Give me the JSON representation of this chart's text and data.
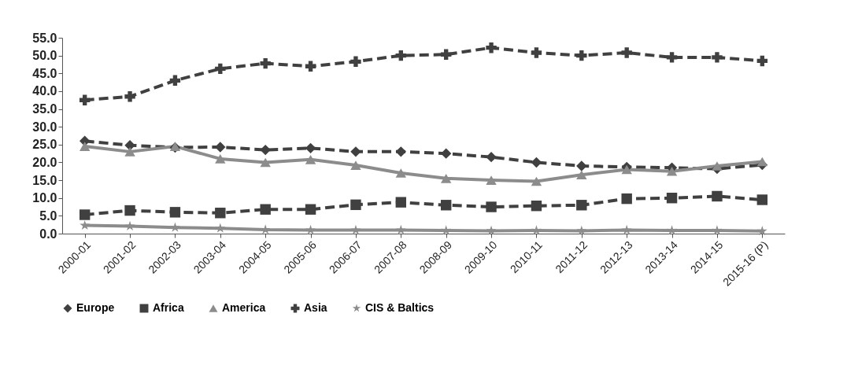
{
  "chart_data": {
    "type": "line",
    "categories": [
      "2000-01",
      "2001-02",
      "2002-03",
      "2003-04",
      "2004-05",
      "2005-06",
      "2006-07",
      "2007-08",
      "2008-09",
      "2009-10",
      "2010-11",
      "2011-12",
      "2012-13",
      "2013-14",
      "2014-15",
      "2015-16 (P)"
    ],
    "series": [
      {
        "name": "Europe",
        "color": "#404040",
        "marker": "diamond",
        "line_style": "dashed",
        "values": [
          26,
          24.8,
          24.2,
          24.3,
          23.5,
          24,
          23,
          23,
          22.5,
          21.5,
          20,
          19,
          18.7,
          18.5,
          18.2,
          19.3
        ]
      },
      {
        "name": "Africa",
        "color": "#404040",
        "marker": "square",
        "line_style": "dashed",
        "values": [
          5.3,
          6.5,
          6,
          5.8,
          6.8,
          6.8,
          8.1,
          8.8,
          8,
          7.5,
          7.8,
          8,
          9.8,
          10,
          10.5,
          9.5
        ]
      },
      {
        "name": "America",
        "color": "#8c8c8c",
        "marker": "triangle",
        "line_style": "solid",
        "values": [
          24.5,
          23,
          24.5,
          21,
          20,
          20.8,
          19.2,
          17,
          15.5,
          15,
          14.7,
          16.5,
          18,
          17.5,
          19,
          20.2
        ]
      },
      {
        "name": "Asia",
        "color": "#404040",
        "marker": "cross",
        "line_style": "dashed",
        "values": [
          37.5,
          38.5,
          43,
          46.3,
          47.8,
          47,
          48.3,
          50,
          50.3,
          52.2,
          50.8,
          50,
          50.8,
          49.5,
          49.5,
          48.5
        ]
      },
      {
        "name": "CIS & Baltics",
        "color": "#8c8c8c",
        "marker": "star",
        "line_style": "solid",
        "values": [
          2.3,
          2.1,
          1.7,
          1.5,
          1.1,
          1,
          1,
          1,
          0.9,
          0.8,
          0.9,
          0.8,
          1,
          0.9,
          0.9,
          0.7
        ]
      }
    ],
    "ylim": [
      0,
      55
    ],
    "yticks": [
      {
        "value": 0,
        "label": "0.0"
      },
      {
        "value": 5,
        "label": "5.0"
      },
      {
        "value": 10,
        "label": "10.0"
      },
      {
        "value": 15,
        "label": "15.0"
      },
      {
        "value": 20,
        "label": "20.0"
      },
      {
        "value": 25,
        "label": "25.0"
      },
      {
        "value": 30,
        "label": "30.0"
      },
      {
        "value": 35,
        "label": "35.0"
      },
      {
        "value": 40,
        "label": "40.0"
      },
      {
        "value": 45,
        "label": "45.0"
      },
      {
        "value": 50,
        "label": "50.0"
      },
      {
        "value": 55,
        "label": "55.0"
      }
    ],
    "grid": false,
    "legend": "bottom"
  }
}
